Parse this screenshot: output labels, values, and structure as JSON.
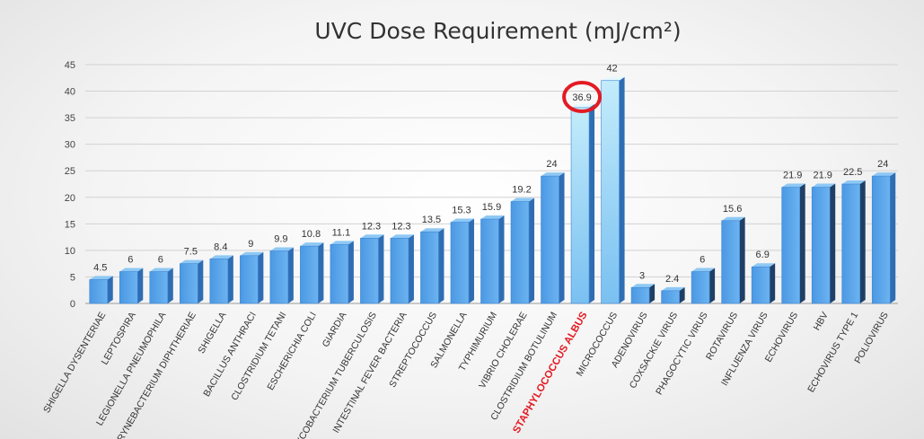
{
  "chart_data": {
    "type": "bar",
    "title": "UVC Dose Requirement (mJ/cm²)",
    "xlabel": "",
    "ylabel": "",
    "ylim": [
      0,
      45
    ],
    "yticks": [
      0,
      5,
      10,
      15,
      20,
      25,
      30,
      35,
      40,
      45
    ],
    "grid": true,
    "legend": "none",
    "highlight": {
      "category": "STAPHYLOCOCCUS ALBUS",
      "label_color": "#e31b23",
      "circle_color": "#e31b23"
    },
    "colors": {
      "bar_front": "#5aa5ec",
      "bar_light": "#9fd6f5",
      "bar_dark_side": "#1f3f66"
    },
    "categories": [
      "SHIGELLA DYSENTERIAE",
      "LEPTOSPIRA",
      "LEGIONELLA PNEUMOPHILA",
      "CORYNEBACTERIUM DIPHTHERIAE",
      "SHIGELLA",
      "BACILLUS ANTHRACI",
      "CLOSTRIDIUM TETANI",
      "ESCHERICHIA COLI",
      "GIARDIA",
      "MYCOBACTERIUM TUBERCULOSIS",
      "INTESTINAL FEVER BACTERIA",
      "STREPTOCOCCUS",
      "SALMONELLA",
      "TYPHIMURIUM",
      "VIBRIO CHOLERAE",
      "CLOSTRIDIUM BOTULINUM",
      "STAPHYLOCOCCUS ALBUS",
      "MICROCOCCUS",
      "ADENOVIRUS",
      "COXSACKIE VIRUS",
      "PHAGOCYTIC VIRUS",
      "ROTAVIRUS",
      "INFLUENZA VIRUS",
      "ECHOVIRUS",
      "HBV",
      "ECHOVIRUS TYPE 1",
      "POLIOVIRUS"
    ],
    "values": [
      4.5,
      6,
      6,
      7.5,
      8.4,
      9,
      9.9,
      10.8,
      11.1,
      12.3,
      12.3,
      13.5,
      15.3,
      15.9,
      19.2,
      24,
      36.9,
      42,
      3,
      2.4,
      6,
      15.6,
      6.9,
      21.9,
      21.9,
      22.5,
      24
    ],
    "value_labels": [
      "4.5",
      "6",
      "6",
      "7.5",
      "8.4",
      "9",
      "9.9",
      "10.8",
      "11.1",
      "12.3",
      "12.3",
      "13.5",
      "15.3",
      "15.9",
      "19.2",
      "24",
      "36.9",
      "42",
      "3",
      "2.4",
      "6",
      "15.6",
      "6.9",
      "21.9",
      "21.9",
      "22.5",
      "24"
    ]
  }
}
